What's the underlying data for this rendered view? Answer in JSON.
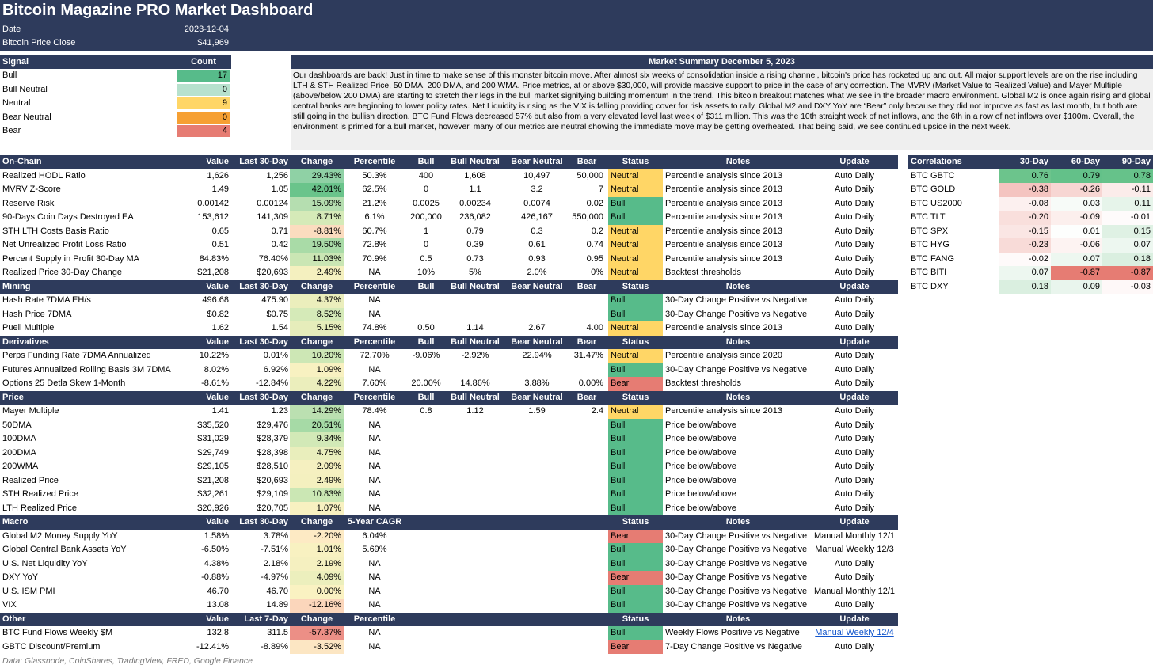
{
  "header": {
    "title": "Bitcoin Magazine PRO Market Dashboard",
    "date_label": "Date",
    "date_value": "2023-12-04",
    "price_label": "Bitcoin Price Close",
    "price_value": "$41,969"
  },
  "colors": {
    "header_bg": "#2e3b5c",
    "bull": "#57bb8a",
    "bull_neutral": "#b7e1cd",
    "neutral": "#ffd666",
    "bear_neutral": "#f6a033",
    "bear": "#e67c73"
  },
  "signal": {
    "header_label": "Signal",
    "header_count": "Count",
    "rows": [
      {
        "label": "Bull",
        "count": "17",
        "color": "#57bb8a"
      },
      {
        "label": "Bull Neutral",
        "count": "0",
        "color": "#b7e1cd"
      },
      {
        "label": "Neutral",
        "count": "9",
        "color": "#ffd666"
      },
      {
        "label": "Bear Neutral",
        "count": "0",
        "color": "#f6a033"
      },
      {
        "label": "Bear",
        "count": "4",
        "color": "#e67c73"
      }
    ]
  },
  "summary": {
    "title": "Market Summary December 5, 2023",
    "text": "Our dashboards are back! Just in time to make sense of this monster bitcoin move. After almost six weeks of consolidation inside a rising channel, bitcoin's price has rocketed up and out. All major support levels are on the rise including LTH & STH Realized Price, 50 DMA, 200 DMA, and 200 WMA. Price metrics, at or above $30,000, will provide massive support to price in the case of any correction. The MVRV (Market Value to Realized Value) and Mayer Multiple (above/below 200 DMA) are starting to stretch their legs in the bull market signifying building momentum in the trend. This bitcoin breakout matches what we see in the broader macro environment. Global M2 is once again rising and global central banks are beginning to lower policy rates. Net Liquidity is rising as the VIX is falling providing cover for risk assets to rally. Global M2 and DXY YoY are “Bear” only because they did not improve as fast as last month, but both are still going in the bullish direction. BTC Fund Flows decreased 57% but also from a very elevated level last week of $311 million. This was the 10th straight week of net inflows, and the 6th in a row of net inflows over $100m. Overall, the environment is primed for a bull market, however, many of our metrics are neutral showing the immediate move may be getting overheated. That being said, we see continued upside in the next week."
  },
  "sections": [
    {
      "id": "onchain",
      "header": {
        "name": "On-Chain",
        "val": "Value",
        "l30": "Last 30-Day",
        "chg": "Change",
        "pct": "Percentile",
        "bull": "Bull",
        "bn": "Bull Neutral",
        "brn": "Bear Neutral",
        "bear": "Bear",
        "st": "Status",
        "notes": "Notes",
        "upd": "Update"
      },
      "rows": [
        {
          "name": "Realized HODL Ratio",
          "val": "1,626",
          "l30": "1,256",
          "chg": "29.43%",
          "chg_color": "#8fd1a5",
          "pct": "50.3%",
          "bull": "400",
          "bn": "1,608",
          "brn": "10,497",
          "bear": "50,000",
          "st": "Neutral",
          "st_color": "#ffd666",
          "notes": "Percentile analysis since 2013",
          "upd": "Auto Daily"
        },
        {
          "name": "MVRV Z-Score",
          "val": "1.49",
          "l30": "1.05",
          "chg": "42.01%",
          "chg_color": "#6ac48b",
          "pct": "62.5%",
          "bull": "0",
          "bn": "1.1",
          "brn": "3.2",
          "bear": "7",
          "st": "Neutral",
          "st_color": "#ffd666",
          "notes": "Percentile analysis since 2013",
          "upd": "Auto Daily"
        },
        {
          "name": "Reserve Risk",
          "val": "0.00142",
          "l30": "0.00124",
          "chg": "15.09%",
          "chg_color": "#b5deb0",
          "pct": "21.2%",
          "bull": "0.0025",
          "bn": "0.00234",
          "brn": "0.0074",
          "bear": "0.02",
          "st": "Bull",
          "st_color": "#57bb8a",
          "notes": "Percentile analysis since 2013",
          "upd": "Auto Daily"
        },
        {
          "name": "90-Days Coin Days Destroyed EA",
          "val": "153,612",
          "l30": "141,309",
          "chg": "8.71%",
          "chg_color": "#d5eab8",
          "pct": "6.1%",
          "bull": "200,000",
          "bn": "236,082",
          "brn": "426,167",
          "bear": "550,000",
          "st": "Bull",
          "st_color": "#57bb8a",
          "notes": "Percentile analysis since 2013",
          "upd": "Auto Daily"
        },
        {
          "name": "STH LTH Costs Basis Ratio",
          "val": "0.65",
          "l30": "0.71",
          "chg": "-8.81%",
          "chg_color": "#fbdcbf",
          "pct": "60.7%",
          "bull": "1",
          "bn": "0.79",
          "brn": "0.3",
          "bear": "0.2",
          "st": "Neutral",
          "st_color": "#ffd666",
          "notes": "Percentile analysis since 2013",
          "upd": "Auto Daily"
        },
        {
          "name": "Net Unrealized Profit Loss Ratio",
          "val": "0.51",
          "l30": "0.42",
          "chg": "19.50%",
          "chg_color": "#a9dba7",
          "pct": "72.8%",
          "bull": "0",
          "bn": "0.39",
          "brn": "0.61",
          "bear": "0.74",
          "st": "Neutral",
          "st_color": "#ffd666",
          "notes": "Percentile analysis since 2013",
          "upd": "Auto Daily"
        },
        {
          "name": "Percent Supply in Profit 30-Day MA",
          "val": "84.83%",
          "l30": "76.40%",
          "chg": "11.03%",
          "chg_color": "#cae6b4",
          "pct": "70.9%",
          "bull": "0.5",
          "bn": "0.73",
          "brn": "0.93",
          "bear": "0.95",
          "st": "Neutral",
          "st_color": "#ffd666",
          "notes": "Percentile analysis since 2013",
          "upd": "Auto Daily"
        },
        {
          "name": "Realized Price 30-Day Change",
          "val": "$21,208",
          "l30": "$20,693",
          "chg": "2.49%",
          "chg_color": "#f4f0bf",
          "pct": "NA",
          "bull": "10%",
          "bn": "5%",
          "brn": "2.0%",
          "bear": "0%",
          "st": "Neutral",
          "st_color": "#ffd666",
          "notes": "Backtest thresholds",
          "upd": "Auto Daily"
        }
      ]
    },
    {
      "id": "mining",
      "header": {
        "name": "Mining",
        "val": "Value",
        "l30": "Last 30-Day",
        "chg": "Change",
        "pct": "Percentile",
        "bull": "Bull",
        "bn": "Bull Neutral",
        "brn": "Bear Neutral",
        "bear": "Bear",
        "st": "Status",
        "notes": "Notes",
        "upd": "Update"
      },
      "rows": [
        {
          "name": "Hash Rate 7DMA EH/s",
          "val": "496.68",
          "l30": "475.90",
          "chg": "4.37%",
          "chg_color": "#ebeebc",
          "pct": "NA",
          "bull": "",
          "bn": "",
          "brn": "",
          "bear": "",
          "st": "Bull",
          "st_color": "#57bb8a",
          "notes": "30-Day Change Positive vs Negative",
          "upd": "Auto Daily"
        },
        {
          "name": "Hash Price 7DMA",
          "val": "$0.82",
          "l30": "$0.75",
          "chg": "8.52%",
          "chg_color": "#d5eab8",
          "pct": "NA",
          "bull": "",
          "bn": "",
          "brn": "",
          "bear": "",
          "st": "Bull",
          "st_color": "#57bb8a",
          "notes": "30-Day Change Positive vs Negative",
          "upd": "Auto Daily"
        },
        {
          "name": "Puell Multiple",
          "val": "1.62",
          "l30": "1.54",
          "chg": "5.15%",
          "chg_color": "#e6edbb",
          "pct": "74.8%",
          "bull": "0.50",
          "bn": "1.14",
          "brn": "2.67",
          "bear": "4.00",
          "st": "Neutral",
          "st_color": "#ffd666",
          "notes": "Percentile analysis since 2013",
          "upd": "Auto Daily"
        }
      ]
    },
    {
      "id": "derivatives",
      "header": {
        "name": "Derivatives",
        "val": "Value",
        "l30": "Last 30-Day",
        "chg": "Change",
        "pct": "Percentile",
        "bull": "Bull",
        "bn": "Bull Neutral",
        "brn": "Bear Neutral",
        "bear": "Bear",
        "st": "Status",
        "notes": "Notes",
        "upd": "Update"
      },
      "rows": [
        {
          "name": "Perps Funding Rate 7DMA Annualized",
          "val": "10.22%",
          "l30": "0.01%",
          "chg": "10.20%",
          "chg_color": "#cde7b5",
          "pct": "72.70%",
          "bull": "-9.06%",
          "bn": "-2.92%",
          "brn": "22.94%",
          "bear": "31.47%",
          "st": "Neutral",
          "st_color": "#ffd666",
          "notes": "Percentile analysis since 2020",
          "upd": "Auto Daily"
        },
        {
          "name": "Futures Annualized Rolling Basis 3M 7DMA",
          "val": "8.02%",
          "l30": "6.92%",
          "chg": "1.09%",
          "chg_color": "#f8f1c1",
          "pct": "NA",
          "bull": "",
          "bn": "",
          "brn": "",
          "bear": "",
          "st": "Bull",
          "st_color": "#57bb8a",
          "notes": "30-Day Change Positive vs Negative",
          "upd": "Auto Daily"
        },
        {
          "name": "Options 25 Detla Skew 1-Month",
          "val": "-8.61%",
          "l30": "-12.84%",
          "chg": "4.22%",
          "chg_color": "#ebeebc",
          "pct": "7.60%",
          "bull": "20.00%",
          "bn": "14.86%",
          "brn": "3.88%",
          "bear": "0.00%",
          "st": "Bear",
          "st_color": "#e67c73",
          "notes": "Backtest thresholds",
          "upd": "Auto Daily"
        }
      ]
    },
    {
      "id": "price",
      "header": {
        "name": "Price",
        "val": "Value",
        "l30": "Last 30-Day",
        "chg": "Change",
        "pct": "Percentile",
        "bull": "Bull",
        "bn": "Bull Neutral",
        "brn": "Bear Neutral",
        "bear": "Bear",
        "st": "Status",
        "notes": "Notes",
        "upd": "Update"
      },
      "rows": [
        {
          "name": "Mayer Multiple",
          "val": "1.41",
          "l30": "1.23",
          "chg": "14.29%",
          "chg_color": "#bbe0b1",
          "pct": "78.4%",
          "bull": "0.8",
          "bn": "1.12",
          "brn": "1.59",
          "bear": "2.4",
          "st": "Neutral",
          "st_color": "#ffd666",
          "notes": "Percentile analysis since 2013",
          "upd": "Auto Daily"
        },
        {
          "name": "50DMA",
          "val": "$35,520",
          "l30": "$29,476",
          "chg": "20.51%",
          "chg_color": "#a6daa6",
          "pct": "NA",
          "bull": "",
          "bn": "",
          "brn": "",
          "bear": "",
          "st": "Bull",
          "st_color": "#57bb8a",
          "notes": "Price below/above",
          "upd": "Auto Daily"
        },
        {
          "name": "100DMA",
          "val": "$31,029",
          "l30": "$28,379",
          "chg": "9.34%",
          "chg_color": "#d2e9b7",
          "pct": "NA",
          "bull": "",
          "bn": "",
          "brn": "",
          "bear": "",
          "st": "Bull",
          "st_color": "#57bb8a",
          "notes": "Price below/above",
          "upd": "Auto Daily"
        },
        {
          "name": "200DMA",
          "val": "$29,749",
          "l30": "$28,398",
          "chg": "4.75%",
          "chg_color": "#e9eebc",
          "pct": "NA",
          "bull": "",
          "bn": "",
          "brn": "",
          "bear": "",
          "st": "Bull",
          "st_color": "#57bb8a",
          "notes": "Price below/above",
          "upd": "Auto Daily"
        },
        {
          "name": "200WMA",
          "val": "$29,105",
          "l30": "$28,510",
          "chg": "2.09%",
          "chg_color": "#f5f0c0",
          "pct": "NA",
          "bull": "",
          "bn": "",
          "brn": "",
          "bear": "",
          "st": "Bull",
          "st_color": "#57bb8a",
          "notes": "Price below/above",
          "upd": "Auto Daily"
        },
        {
          "name": "Realized Price",
          "val": "$21,208",
          "l30": "$20,693",
          "chg": "2.49%",
          "chg_color": "#f4f0bf",
          "pct": "NA",
          "bull": "",
          "bn": "",
          "brn": "",
          "bear": "",
          "st": "Bull",
          "st_color": "#57bb8a",
          "notes": "Price below/above",
          "upd": "Auto Daily"
        },
        {
          "name": "STH Realized Price",
          "val": "$32,261",
          "l30": "$29,109",
          "chg": "10.83%",
          "chg_color": "#cbe7b4",
          "pct": "NA",
          "bull": "",
          "bn": "",
          "brn": "",
          "bear": "",
          "st": "Bull",
          "st_color": "#57bb8a",
          "notes": "Price below/above",
          "upd": "Auto Daily"
        },
        {
          "name": "LTH Realized Price",
          "val": "$20,926",
          "l30": "$20,705",
          "chg": "1.07%",
          "chg_color": "#f8f1c1",
          "pct": "NA",
          "bull": "",
          "bn": "",
          "brn": "",
          "bear": "",
          "st": "Bull",
          "st_color": "#57bb8a",
          "notes": "Price below/above",
          "upd": "Auto Daily"
        }
      ]
    },
    {
      "id": "macro",
      "header": {
        "name": "Macro",
        "val": "Value",
        "l30": "Last 30-Day",
        "chg": "Change",
        "pct": "5-Year CAGR",
        "bull": "",
        "bn": "",
        "brn": "",
        "bear": "",
        "st": "Status",
        "notes": "Notes",
        "upd": "Update"
      },
      "rows": [
        {
          "name": "Global M2 Money Supply YoY",
          "val": "1.58%",
          "l30": "3.78%",
          "chg": "-2.20%",
          "chg_color": "#fdeac4",
          "pct": "6.04%",
          "bull": "",
          "bn": "",
          "brn": "",
          "bear": "",
          "st": "Bear",
          "st_color": "#e67c73",
          "notes": "30-Day Change Positive vs Negative",
          "upd": "Manual Monthly 12/1"
        },
        {
          "name": "Global Central Bank Assets YoY",
          "val": "-6.50%",
          "l30": "-7.51%",
          "chg": "1.01%",
          "chg_color": "#f8f1c1",
          "pct": "5.69%",
          "bull": "",
          "bn": "",
          "brn": "",
          "bear": "",
          "st": "Bull",
          "st_color": "#57bb8a",
          "notes": "30-Day Change Positive vs Negative",
          "upd": "Manual Weekly 12/3"
        },
        {
          "name": "U.S. Net Liquidity YoY",
          "val": "4.38%",
          "l30": "2.18%",
          "chg": "2.19%",
          "chg_color": "#f5f0c0",
          "pct": "NA",
          "bull": "",
          "bn": "",
          "brn": "",
          "bear": "",
          "st": "Bull",
          "st_color": "#57bb8a",
          "notes": "30-Day Change Positive vs Negative",
          "upd": "Auto Daily"
        },
        {
          "name": "DXY YoY",
          "val": "-0.88%",
          "l30": "-4.97%",
          "chg": "4.09%",
          "chg_color": "#ecefbd",
          "pct": "NA",
          "bull": "",
          "bn": "",
          "brn": "",
          "bear": "",
          "st": "Bear",
          "st_color": "#e67c73",
          "notes": "30-Day Change Positive vs Negative",
          "upd": "Auto Daily"
        },
        {
          "name": "U.S. ISM PMI",
          "val": "46.70",
          "l30": "46.70",
          "chg": "0.00%",
          "chg_color": "#faf2c2",
          "pct": "NA",
          "bull": "",
          "bn": "",
          "brn": "",
          "bear": "",
          "st": "Bull",
          "st_color": "#57bb8a",
          "notes": "30-Day Change Positive vs Negative",
          "upd": "Manual Monthly 12/1"
        },
        {
          "name": "VIX",
          "val": "13.08",
          "l30": "14.89",
          "chg": "-12.16%",
          "chg_color": "#fbd6bb",
          "pct": "NA",
          "bull": "",
          "bn": "",
          "brn": "",
          "bear": "",
          "st": "Bull",
          "st_color": "#57bb8a",
          "notes": "30-Day Change Positive vs Negative",
          "upd": "Auto Daily"
        }
      ]
    },
    {
      "id": "other",
      "header": {
        "name": "Other",
        "val": "Value",
        "l30": "Last 7-Day",
        "chg": "Change",
        "pct": "Percentile",
        "bull": "",
        "bn": "",
        "brn": "",
        "bear": "",
        "st": "Status",
        "notes": "Notes",
        "upd": "Update"
      },
      "rows": [
        {
          "name": "BTC Fund Flows Weekly $M",
          "val": "132.8",
          "l30": "311.5",
          "chg": "-57.37%",
          "chg_color": "#ec8f86",
          "pct": "NA",
          "bull": "",
          "bn": "",
          "brn": "",
          "bear": "",
          "st": "Bull",
          "st_color": "#57bb8a",
          "notes": "Weekly Flows Positive vs Negative",
          "upd": "Manual Weekly 12/4",
          "upd_link": true
        },
        {
          "name": "GBTC Discount/Premium",
          "val": "-12.41%",
          "l30": "-8.89%",
          "chg": "-3.52%",
          "chg_color": "#fce6c3",
          "pct": "NA",
          "bull": "",
          "bn": "",
          "brn": "",
          "bear": "",
          "st": "Bear",
          "st_color": "#e67c73",
          "notes": "7-Day Change Positive vs Negative",
          "upd": "Auto Daily"
        }
      ]
    }
  ],
  "correlations": {
    "header": {
      "name": "Correlations",
      "d30": "30-Day",
      "d60": "60-Day",
      "d90": "90-Day"
    },
    "rows": [
      {
        "name": "BTC GBTC",
        "d30": "0.76",
        "d60": "0.79",
        "d90": "0.78",
        "c30": "#6cc48c",
        "c60": "#63c189",
        "c90": "#66c28a"
      },
      {
        "name": "BTC GOLD",
        "d30": "-0.38",
        "d60": "-0.26",
        "d90": "-0.11",
        "c30": "#f4c4c0",
        "c60": "#f7d6d3",
        "c90": "#fbecea"
      },
      {
        "name": "BTC US2000",
        "d30": "-0.08",
        "d60": "0.03",
        "d90": "0.11",
        "c30": "#fcf0ef",
        "c60": "#f7fbf8",
        "c90": "#e6f4ea"
      },
      {
        "name": "BTC TLT",
        "d30": "-0.20",
        "d60": "-0.09",
        "d90": "-0.01",
        "c30": "#f9dfdc",
        "c60": "#fcefed",
        "c90": "#fefbfb"
      },
      {
        "name": "BTC SPX",
        "d30": "-0.15",
        "d60": "0.01",
        "d90": "0.15",
        "c30": "#fae6e4",
        "c60": "#fdfefd",
        "c90": "#dff1e4"
      },
      {
        "name": "BTC HYG",
        "d30": "-0.23",
        "d60": "-0.06",
        "d90": "0.07",
        "c30": "#f8dbd8",
        "c60": "#fdf3f2",
        "c90": "#edf7f0"
      },
      {
        "name": "BTC FANG",
        "d30": "-0.02",
        "d60": "0.07",
        "d90": "0.18",
        "c30": "#fefafa",
        "c60": "#edf7f0",
        "c90": "#daefe0"
      },
      {
        "name": "BTC BITI",
        "d30": "0.07",
        "d60": "-0.87",
        "d90": "-0.87",
        "c30": "#edf7f0",
        "c60": "#e67c73",
        "c90": "#e67c73"
      },
      {
        "name": "BTC DXY",
        "d30": "0.18",
        "d60": "0.09",
        "d90": "-0.03",
        "c30": "#daefe0",
        "c60": "#e9f5ed",
        "c90": "#fef8f8"
      }
    ]
  },
  "footer": "Data: Glassnode, CoinShares, TradingView, FRED, Google Finance"
}
